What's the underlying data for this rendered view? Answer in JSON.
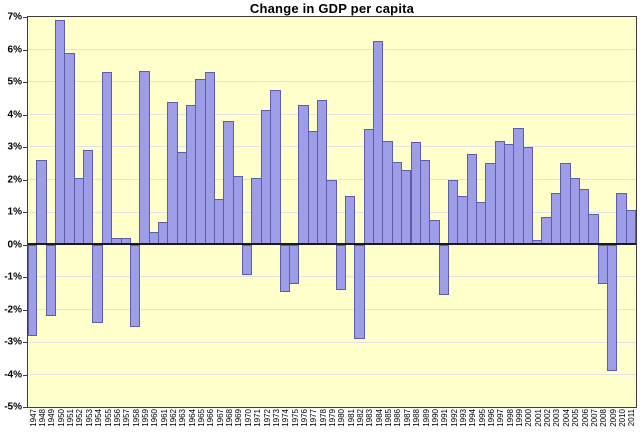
{
  "colors": {
    "page_bg": "#ffffff",
    "plot_bg": "#ffffcc",
    "bar_fill": "#9d9de8",
    "bar_border": "#5e5ea6",
    "gridline": "#e2e2e2",
    "zero_line": "#1a1a1a",
    "frame": "#3c3c3c",
    "text": "#000000"
  },
  "chart_data": {
    "type": "bar",
    "title": "Change in GDP per capita",
    "xlabel": "",
    "ylabel": "",
    "unit": "%",
    "ylim": [
      -5,
      7
    ],
    "grid": true,
    "legend_position": "none",
    "y_tick_labels": [
      "7%",
      "6%",
      "5%",
      "4%",
      "3%",
      "2%",
      "1%",
      "0%",
      "-1%",
      "-2%",
      "-3%",
      "-4%",
      "-5%"
    ],
    "categories": [
      "1947",
      "1948",
      "1949",
      "1950",
      "1951",
      "1952",
      "1953",
      "1954",
      "1955",
      "1956",
      "1957",
      "1958",
      "1959",
      "1960",
      "1961",
      "1962",
      "1963",
      "1964",
      "1965",
      "1966",
      "1967",
      "1968",
      "1969",
      "1970",
      "1971",
      "1972",
      "1973",
      "1974",
      "1975",
      "1976",
      "1977",
      "1978",
      "1979",
      "1980",
      "1981",
      "1982",
      "1983",
      "1984",
      "1985",
      "1986",
      "1987",
      "1988",
      "1989",
      "1990",
      "1991",
      "1992",
      "1993",
      "1994",
      "1995",
      "1996",
      "1997",
      "1998",
      "1999",
      "2000",
      "2001",
      "2002",
      "2003",
      "2004",
      "2005",
      "2006",
      "2007",
      "2008",
      "2009",
      "2010",
      "2011"
    ],
    "values": [
      -2.8,
      2.6,
      -2.2,
      6.9,
      5.9,
      2.05,
      2.9,
      -2.4,
      5.3,
      0.2,
      0.2,
      -2.55,
      5.35,
      0.4,
      0.7,
      4.4,
      2.85,
      4.3,
      5.1,
      5.3,
      1.4,
      3.8,
      2.1,
      -0.95,
      2.05,
      4.15,
      4.75,
      -1.45,
      -1.2,
      4.3,
      3.5,
      4.45,
      2.0,
      -1.4,
      1.5,
      -2.9,
      3.55,
      6.25,
      3.2,
      2.55,
      2.3,
      3.15,
      2.6,
      0.75,
      -1.55,
      2.0,
      1.5,
      2.8,
      1.3,
      2.5,
      3.2,
      3.1,
      3.6,
      3.0,
      0.15,
      0.85,
      1.6,
      2.5,
      2.05,
      1.7,
      0.95,
      -1.2,
      -3.9,
      1.6,
      1.05
    ]
  }
}
